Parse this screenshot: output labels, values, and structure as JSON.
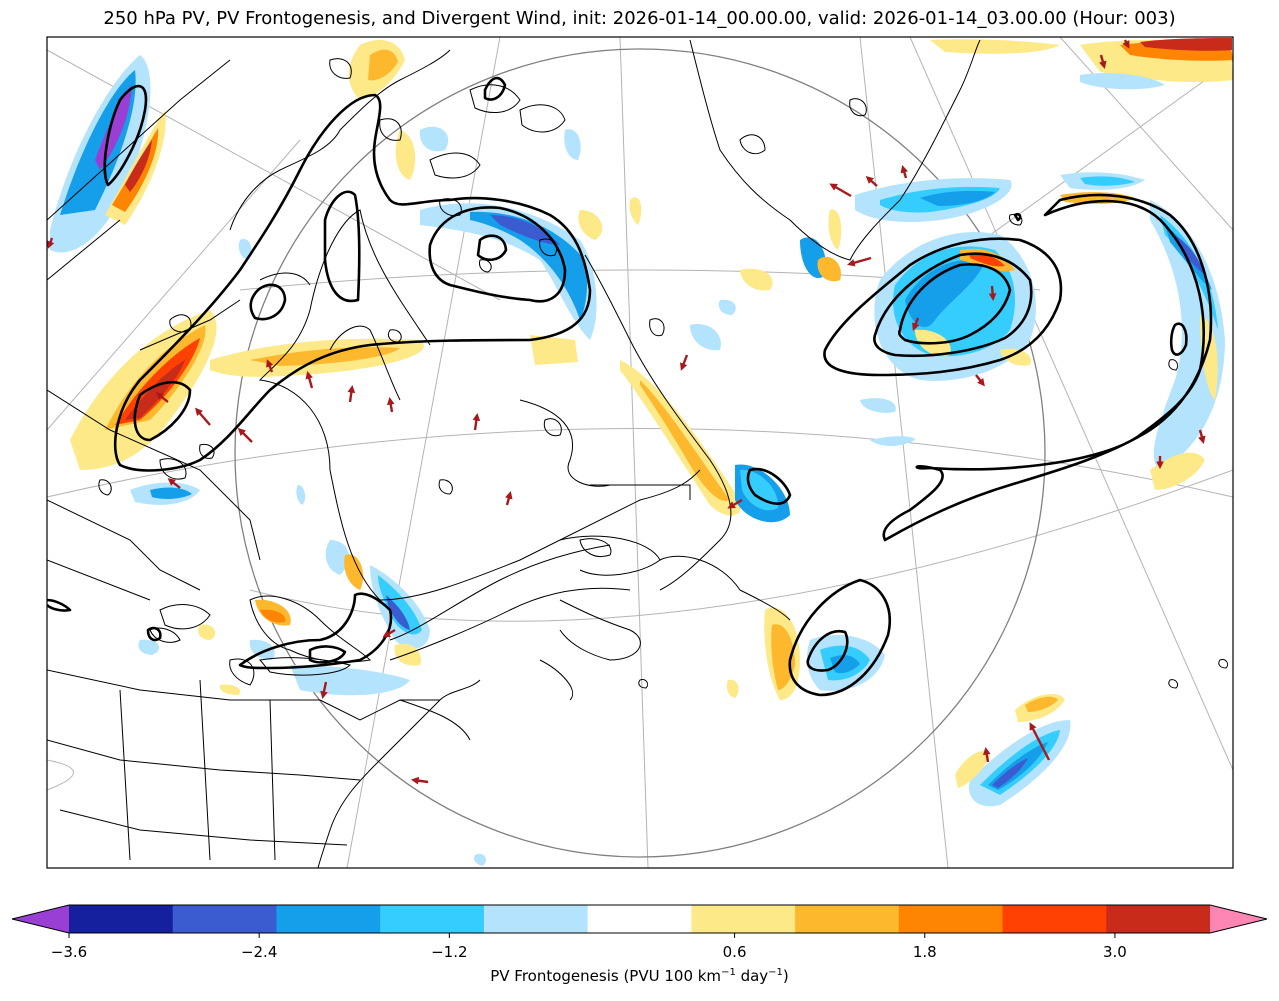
{
  "title": "250 hPa PV, PV Frontogenesis, and Divergent Wind, init: 2026-01-14_00.00.00, valid: 2026-01-14_03.00.00 (Hour: 003)",
  "colorbar": {
    "label_main": "PV Frontogenesis (PVU 100 km",
    "label_sup1": "−1",
    "label_mid": " day",
    "label_sup2": "−1",
    "label_end": ")",
    "levels": [
      -3.6,
      -3.0,
      -2.4,
      -1.8,
      -1.2,
      -0.6,
      0.6,
      1.2,
      1.8,
      2.4,
      3.0,
      3.6
    ],
    "colors": [
      "#15209e",
      "#3b5bd1",
      "#159eea",
      "#35cdfd",
      "#b4e4fd",
      "#ffffff",
      "#fde987",
      "#feb82d",
      "#fe8502",
      "#fe4103",
      "#c92b1b"
    ],
    "under_color": "#9a3fd4",
    "over_color": "#fd86b4",
    "ticks": [
      {
        "value": -3.6,
        "label": "−3.6"
      },
      {
        "value": -2.4,
        "label": "−2.4"
      },
      {
        "value": -1.2,
        "label": "−1.2"
      },
      {
        "value": 0.6,
        "label": "0.6"
      },
      {
        "value": 1.8,
        "label": "1.8"
      },
      {
        "value": 3.0,
        "label": "3.0"
      }
    ]
  },
  "palette": {
    "pv_contour": "#000000",
    "coastline": "#000000",
    "grid": "#b4b4b4",
    "wind_arrow": "#a8191e"
  }
}
